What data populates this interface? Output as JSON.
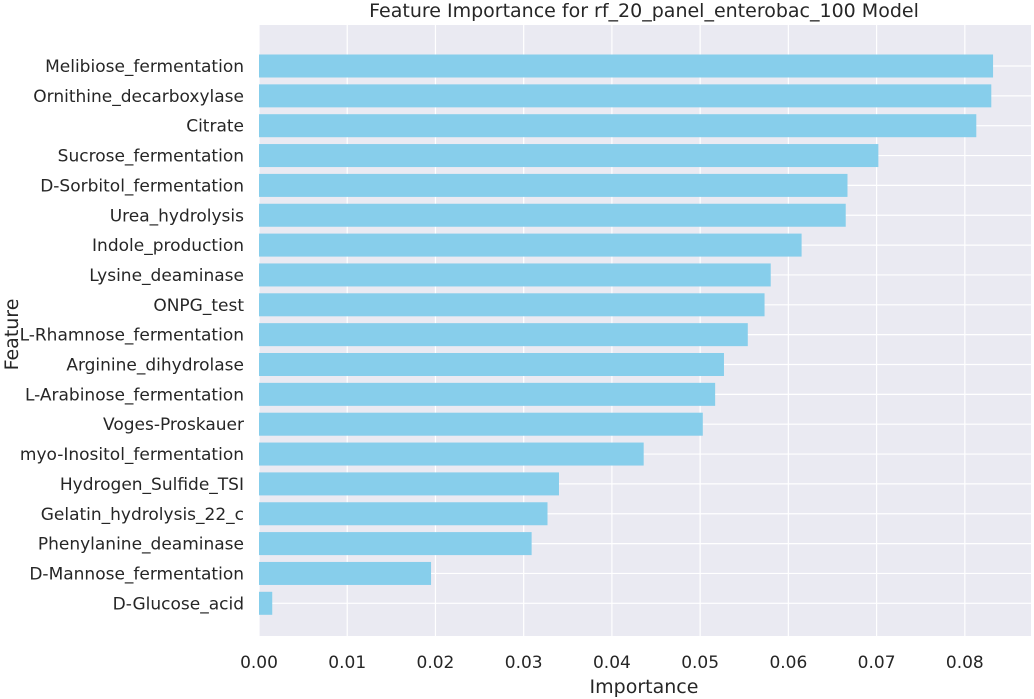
{
  "chart_data": {
    "type": "bar",
    "orientation": "horizontal",
    "title": "Feature Importance for rf_20_panel_enterobac_100 Model",
    "xlabel": "Importance",
    "ylabel": "Feature",
    "xlim": [
      0.0,
      0.0875
    ],
    "xticks": [
      0.0,
      0.01,
      0.02,
      0.03,
      0.04,
      0.05,
      0.06,
      0.07,
      0.08
    ],
    "xtick_labels": [
      "0.00",
      "0.01",
      "0.02",
      "0.03",
      "0.04",
      "0.05",
      "0.06",
      "0.07",
      "0.08"
    ],
    "grid": true,
    "bar_color": "#87CEEB",
    "background_color": "#EAEAF2",
    "categories": [
      "Melibiose_fermentation",
      "Ornithine_decarboxylase",
      "Citrate",
      "Sucrose_fermentation",
      "D-Sorbitol_fermentation",
      "Urea_hydrolysis",
      "Indole_production",
      "Lysine_deaminase",
      "ONPG_test",
      "L-Rhamnose_fermentation",
      "Arginine_dihydrolase",
      "L-Arabinose_fermentation",
      "Voges-Proskauer",
      "myo-Inositol_fermentation",
      "Hydrogen_Sulfide_TSI",
      "Gelatin_hydrolysis_22_c",
      "Phenylanine_deaminase",
      "D-Mannose_fermentation",
      "D-Glucose_acid"
    ],
    "values": [
      0.0832,
      0.083,
      0.0813,
      0.0702,
      0.0667,
      0.0665,
      0.0615,
      0.058,
      0.0573,
      0.0554,
      0.0527,
      0.0517,
      0.0503,
      0.0436,
      0.034,
      0.0327,
      0.0309,
      0.0195,
      0.0015
    ]
  }
}
